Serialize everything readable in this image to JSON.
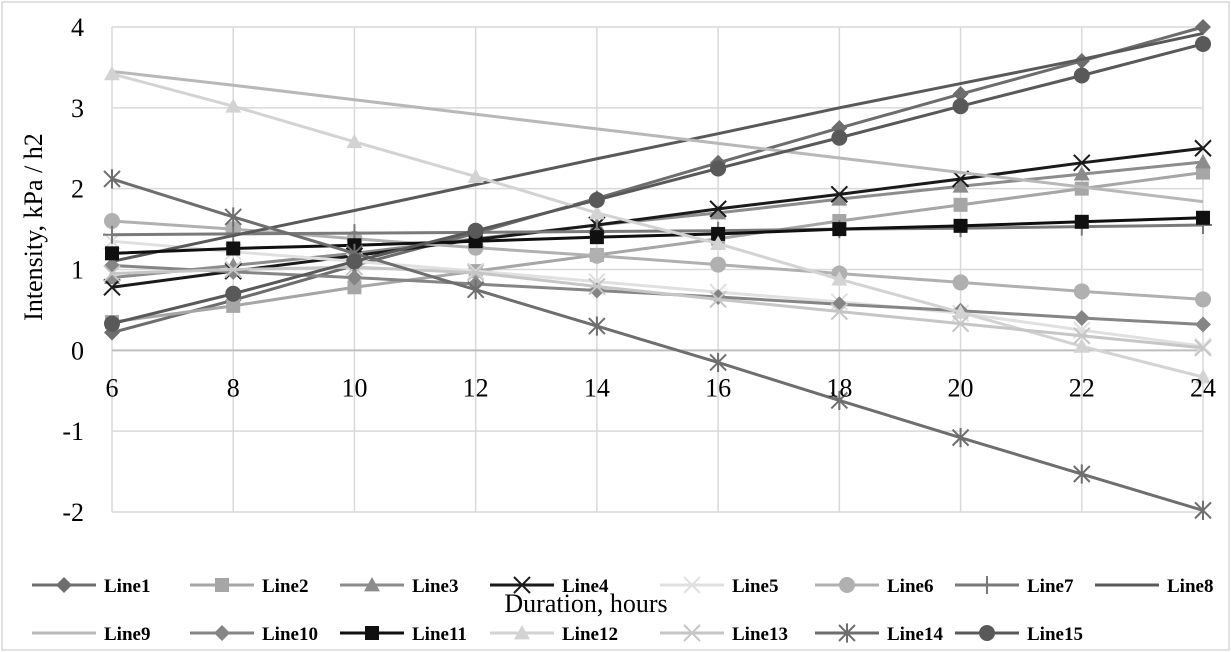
{
  "chart_data": {
    "type": "line",
    "title": "",
    "xlabel": "Duration, hours",
    "ylabel": "Intensity, kPa / h2",
    "x": [
      6,
      8,
      10,
      12,
      14,
      16,
      18,
      20,
      22,
      24
    ],
    "x_ticks": [
      "6",
      "8",
      "10",
      "12",
      "14",
      "16",
      "18",
      "20",
      "22",
      "24"
    ],
    "y_ticks": [
      "4",
      "3",
      "2",
      "1",
      "0",
      "-1",
      "-2"
    ],
    "xlim": [
      6,
      24
    ],
    "ylim": [
      -2,
      4
    ],
    "grid": true,
    "legend_position": "bottom",
    "series": [
      {
        "name": "Line1",
        "color": "#6d6d6d",
        "marker": "diamond",
        "values": [
          0.22,
          0.62,
          1.05,
          1.45,
          1.88,
          2.32,
          2.75,
          3.17,
          3.58,
          4.0
        ]
      },
      {
        "name": "Line2",
        "color": "#a6a6a6",
        "marker": "square",
        "values": [
          0.35,
          0.55,
          0.78,
          0.98,
          1.18,
          1.38,
          1.6,
          1.8,
          2.0,
          2.2
        ]
      },
      {
        "name": "Line3",
        "color": "#8c8c8c",
        "marker": "triangle",
        "values": [
          0.9,
          1.05,
          1.2,
          1.38,
          1.55,
          1.7,
          1.87,
          2.03,
          2.18,
          2.33
        ]
      },
      {
        "name": "Line4",
        "color": "#1a1a1a",
        "marker": "x",
        "values": [
          0.78,
          0.98,
          1.17,
          1.37,
          1.55,
          1.75,
          1.93,
          2.12,
          2.32,
          2.5
        ]
      },
      {
        "name": "Line5",
        "color": "#e0e0e0",
        "marker": "x",
        "values": [
          1.35,
          1.22,
          1.1,
          0.98,
          0.85,
          0.72,
          0.6,
          0.46,
          0.25,
          0.05
        ]
      },
      {
        "name": "Line6",
        "color": "#b0b0b0",
        "marker": "circle",
        "values": [
          1.6,
          1.5,
          1.38,
          1.27,
          1.17,
          1.06,
          0.95,
          0.84,
          0.73,
          0.63
        ]
      },
      {
        "name": "Line7",
        "color": "#7a7a7a",
        "marker": "plus",
        "values": [
          1.43,
          1.44,
          1.45,
          1.46,
          1.47,
          1.48,
          1.5,
          1.51,
          1.53,
          1.55
        ]
      },
      {
        "name": "Line8",
        "color": "#595959",
        "marker": "none",
        "values": [
          1.1,
          1.42,
          1.73,
          2.05,
          2.37,
          2.68,
          3.0,
          3.3,
          3.6,
          3.92
        ]
      },
      {
        "name": "Line9",
        "color": "#b8b8b8",
        "marker": "none",
        "values": [
          3.45,
          3.28,
          3.1,
          2.92,
          2.74,
          2.56,
          2.38,
          2.2,
          2.02,
          1.84
        ]
      },
      {
        "name": "Line10",
        "color": "#858585",
        "marker": "diamond",
        "values": [
          1.05,
          0.97,
          0.9,
          0.82,
          0.74,
          0.66,
          0.57,
          0.49,
          0.4,
          0.32
        ]
      },
      {
        "name": "Line11",
        "color": "#101010",
        "marker": "square",
        "values": [
          1.2,
          1.26,
          1.3,
          1.35,
          1.4,
          1.44,
          1.5,
          1.54,
          1.59,
          1.64
        ]
      },
      {
        "name": "Line12",
        "color": "#d3d3d3",
        "marker": "triangle",
        "values": [
          3.42,
          3.02,
          2.58,
          2.15,
          1.7,
          1.32,
          0.88,
          0.47,
          0.05,
          -0.33
        ]
      },
      {
        "name": "Line13",
        "color": "#c6c6c6",
        "marker": "x",
        "values": [
          0.95,
          1.0,
          1.03,
          0.96,
          0.79,
          0.63,
          0.48,
          0.33,
          0.18,
          0.03
        ]
      },
      {
        "name": "Line14",
        "color": "#6e6e6e",
        "marker": "star",
        "values": [
          2.12,
          1.65,
          1.2,
          0.75,
          0.3,
          -0.15,
          -0.62,
          -1.08,
          -1.53,
          -1.98
        ]
      },
      {
        "name": "Line15",
        "color": "#595959",
        "marker": "circle",
        "values": [
          0.33,
          0.7,
          1.1,
          1.48,
          1.86,
          2.25,
          2.63,
          3.02,
          3.4,
          3.79
        ]
      }
    ]
  }
}
